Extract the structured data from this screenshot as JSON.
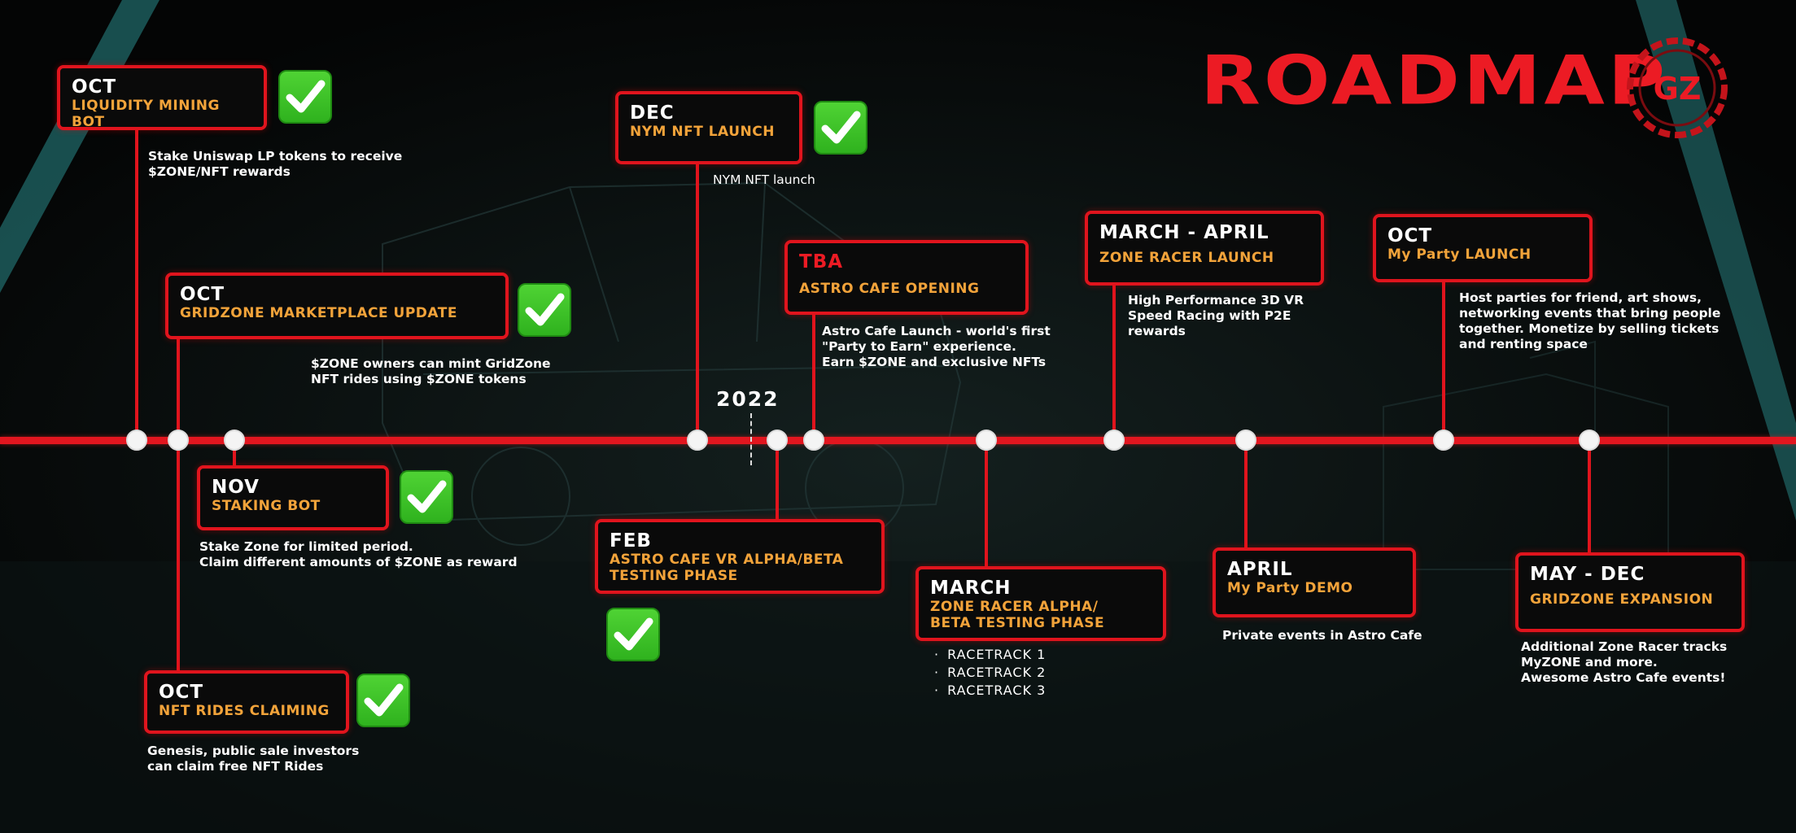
{
  "title": "ROADMAP",
  "logo_text": "GZ",
  "year_marker": "2022",
  "colors": {
    "accent": "#e0141d",
    "subtitle": "#f2a33a",
    "check": "#3cc426",
    "background": "#050708"
  },
  "milestones": [
    {
      "id": "oct-lmb",
      "month": "OCT",
      "title": "LIQUIDITY MINING BOT",
      "done": true,
      "description": "Stake Uniswap LP tokens to receive\n$ZONE/NFT rewards"
    },
    {
      "id": "oct-gmu",
      "month": "OCT",
      "title": "GRIDZONE MARKETPLACE UPDATE",
      "done": true,
      "description": "$ZONE owners can mint GridZone\nNFT rides using $ZONE tokens"
    },
    {
      "id": "nov-sb",
      "month": "NOV",
      "title": "STAKING BOT",
      "done": true,
      "description": "Stake Zone for limited period.\nClaim different amounts of $ZONE as reward"
    },
    {
      "id": "oct-nrc",
      "month": "OCT",
      "title": "NFT RIDES CLAIMING",
      "done": true,
      "description": "Genesis, public sale investors\ncan claim free NFT Rides"
    },
    {
      "id": "dec-nym",
      "month": "DEC",
      "title": "NYM NFT LAUNCH",
      "done": true,
      "description": "NYM NFT launch"
    },
    {
      "id": "feb-ac",
      "month": "FEB",
      "title": "ASTRO CAFE VR ALPHA/BETA\nTESTING PHASE",
      "done": true,
      "description": ""
    },
    {
      "id": "tba-ac",
      "month": "TBA",
      "title": "ASTRO CAFE OPENING",
      "done": false,
      "description": "Astro Cafe Launch - world's first\n\"Party to Earn\" experience.\nEarn $ZONE and exclusive NFTs"
    },
    {
      "id": "march-zr",
      "month": "MARCH",
      "title": "ZONE RACER ALPHA/\nBETA TESTING PHASE",
      "done": false,
      "description": "",
      "items": [
        "RACETRACK 1",
        "RACETRACK 2",
        "RACETRACK 3"
      ]
    },
    {
      "id": "march-april-zr",
      "month": "MARCH - APRIL",
      "title": "ZONE RACER LAUNCH",
      "done": false,
      "description": "High Performance 3D VR\nSpeed Racing with P2E\nrewards"
    },
    {
      "id": "april-mp",
      "month": "APRIL",
      "title": "My Party DEMO",
      "done": false,
      "description": "Private events in Astro Cafe"
    },
    {
      "id": "oct-mp",
      "month": "OCT",
      "title": "My Party LAUNCH",
      "done": false,
      "description": "Host parties for friend, art shows,\nnetworking events that bring people\ntogether. Monetize by selling tickets\nand renting space"
    },
    {
      "id": "may-dec-ge",
      "month": "MAY - DEC",
      "title": "GRIDZONE EXPANSION",
      "done": false,
      "description": "Additional Zone Racer tracks\nMyZONE and more.\nAwesome Astro Cafe events!"
    }
  ]
}
